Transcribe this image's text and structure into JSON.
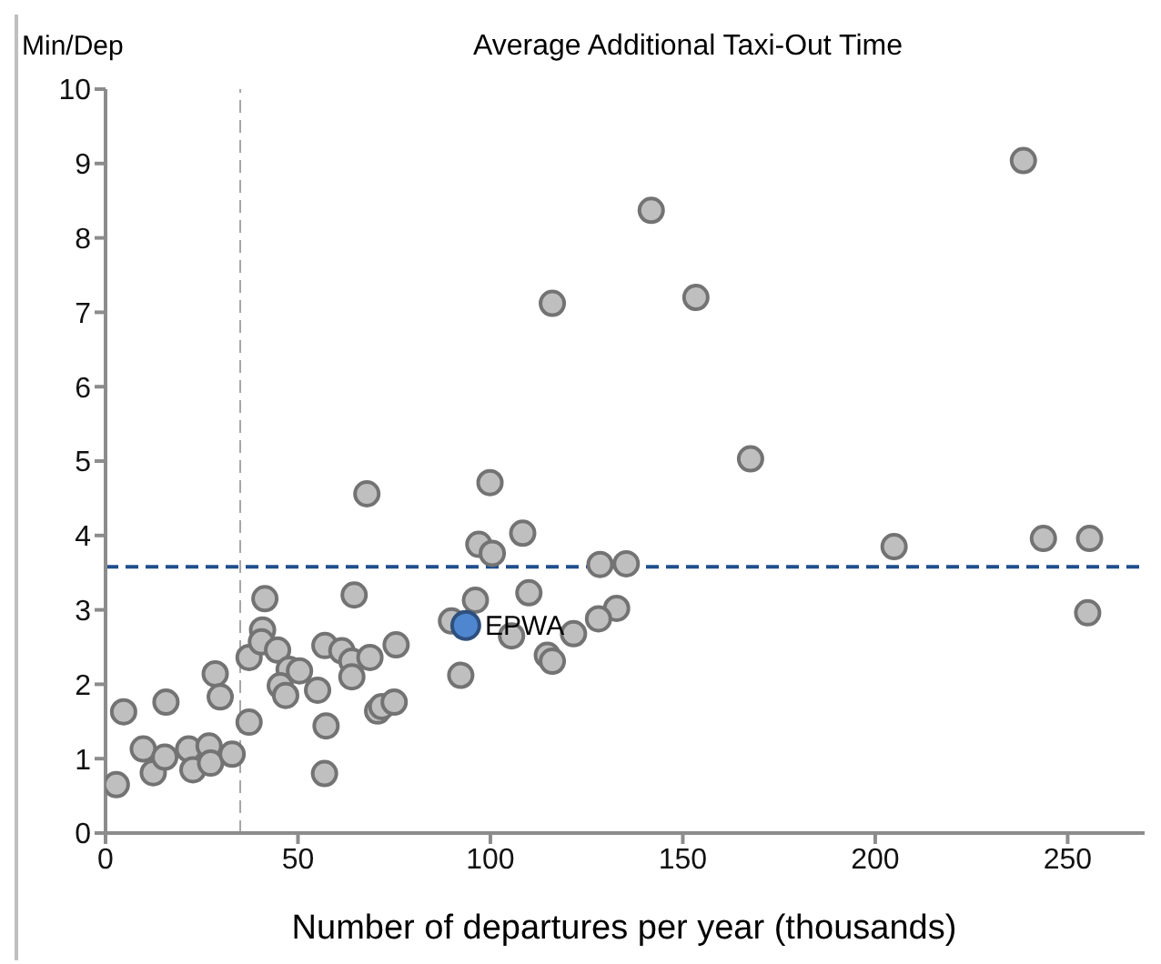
{
  "chart_data": {
    "type": "scatter",
    "title": "Average Additional Taxi-Out Time",
    "xlabel": "Number of departures per year (thousands)",
    "ylabel": "Min/Dep",
    "xlim": [
      0,
      270
    ],
    "xticks": [
      0,
      50,
      100,
      150,
      200,
      250
    ],
    "ylim": [
      0,
      10
    ],
    "yticks": [
      0,
      1,
      2,
      3,
      4,
      5,
      6,
      7,
      8,
      9,
      10
    ],
    "grid": false,
    "legend": false,
    "marker": "circle",
    "series": [
      {
        "color": "#bfbfbf",
        "x": [
          2.8,
          4.7,
          9.8,
          12.4,
          15.4,
          15.7,
          21.6,
          22.7,
          26.9,
          27.3,
          28.5,
          29.8,
          32.9,
          37.3,
          37.3,
          41.4,
          40.8,
          40.5,
          44.7,
          47.7,
          45.4,
          46.8,
          50.4,
          55.1,
          57.0,
          57.3,
          56.9,
          61.4,
          64.0,
          64.0,
          64.6,
          68.7,
          67.9,
          75.5,
          70.7,
          71.8,
          75.0,
          99.9,
          97.0,
          100.5,
          108.4,
          128.5,
          135.3,
          96.1,
          110.0,
          132.8,
          128.1,
          89.9,
          105.5,
          121.6,
          114.8,
          116.1,
          92.3,
          116.1,
          141.8,
          153.4,
          167.6,
          204.9,
          238.5,
          243.7,
          255.7,
          255.2
        ],
        "values": [
          0.65,
          1.63,
          1.13,
          0.81,
          1.02,
          1.76,
          1.13,
          0.85,
          1.17,
          0.94,
          2.14,
          1.83,
          1.06,
          1.49,
          2.36,
          3.15,
          2.73,
          2.57,
          2.46,
          2.2,
          1.98,
          1.85,
          2.18,
          1.92,
          2.52,
          1.44,
          0.8,
          2.45,
          2.31,
          2.1,
          3.2,
          2.36,
          4.56,
          2.53,
          1.64,
          1.7,
          1.76,
          4.71,
          3.88,
          3.76,
          4.03,
          3.61,
          3.62,
          3.13,
          3.23,
          3.02,
          2.88,
          2.85,
          2.65,
          2.68,
          2.39,
          2.31,
          2.12,
          7.12,
          8.37,
          7.2,
          5.03,
          3.85,
          9.04,
          3.96,
          3.96,
          2.96
        ]
      },
      {
        "name": "EPWA",
        "color": "#4f86d0",
        "x": [
          93.6
        ],
        "values": [
          2.79
        ]
      }
    ],
    "ref_lines": [
      {
        "axis": "y",
        "value": 3.58,
        "color": "#1f4e8c",
        "line_style": "dashed"
      },
      {
        "axis": "x",
        "value": 35,
        "color": "#a6a6a6",
        "line_style": "dashed"
      }
    ]
  }
}
